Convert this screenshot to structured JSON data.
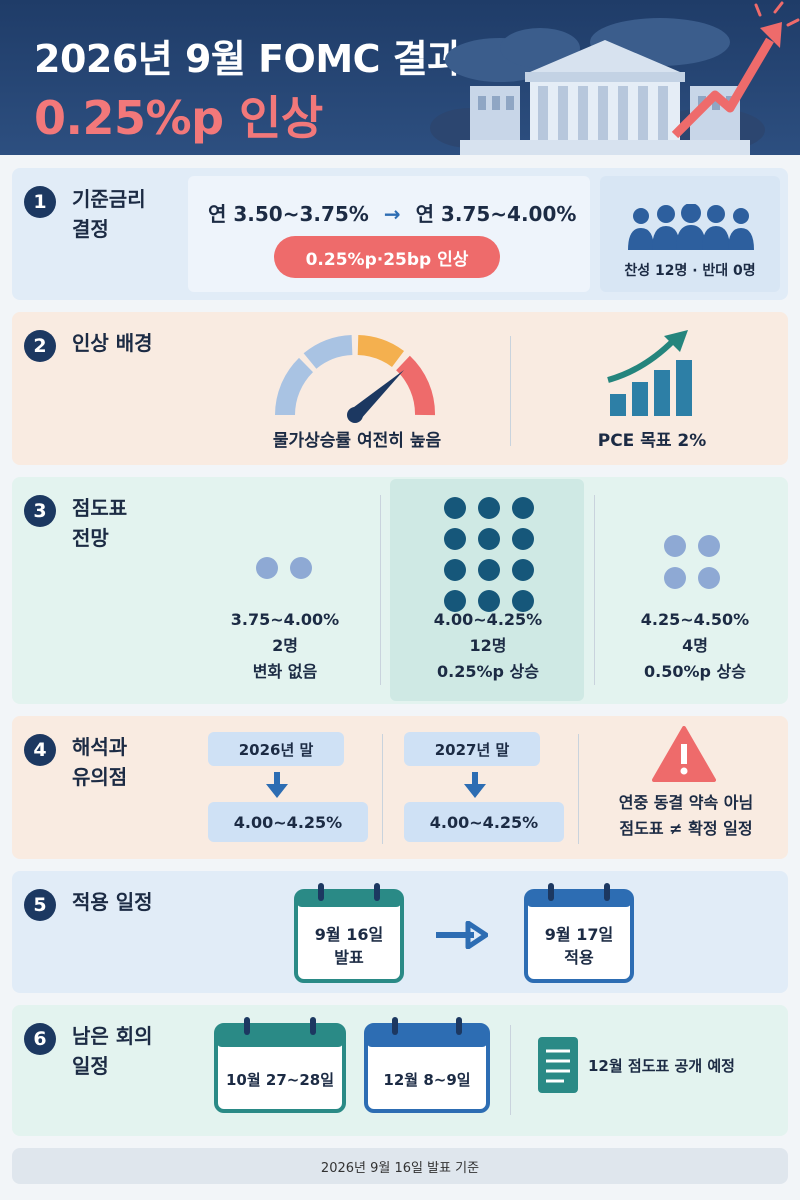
{
  "header": {
    "title": "2026년 9월 FOMC 결과",
    "subtitle": "0.25%p 인상"
  },
  "s1": {
    "num": "1",
    "title_l1": "기준금리",
    "title_l2": "결정",
    "from": "연 3.50~3.75%",
    "arrow": "→",
    "to": "연 3.75~4.00%",
    "badge": "0.25%p·25bp 인상",
    "vote": "찬성 12명 · 반대 0명"
  },
  "s2": {
    "num": "2",
    "title": "인상 배경",
    "gauge_label": "물가상승률 여전히 높음",
    "target_label": "PCE 목표 2%"
  },
  "s3": {
    "num": "3",
    "title_l1": "점도표",
    "title_l2": "전망",
    "groups": [
      {
        "range": "3.75~4.00%",
        "count": "2명",
        "note": "변화 없음"
      },
      {
        "range": "4.00~4.25%",
        "count": "12명",
        "note": "0.25%p 상승"
      },
      {
        "range": "4.25~4.50%",
        "count": "4명",
        "note": "0.50%p 상승"
      }
    ]
  },
  "s4": {
    "num": "4",
    "title_l1": "해석과",
    "title_l2": "유의점",
    "y2026_label": "2026년 말",
    "y2026_value": "4.00~4.25%",
    "y2027_label": "2027년 말",
    "y2027_value": "4.00~4.25%",
    "note_l1": "연중 동결 약속 아님",
    "note_l2": "점도표 ≠ 확정 일정"
  },
  "s5": {
    "num": "5",
    "title": "적용 일정",
    "announce_l1": "9월 16일",
    "announce_l2": "발표",
    "apply_l1": "9월 17일",
    "apply_l2": "적용"
  },
  "s6": {
    "num": "6",
    "title_l1": "남은 회의",
    "title_l2": "일정",
    "meeting1": "10월 27~28일",
    "meeting2": "12월 8~9일",
    "note": "12월 점도표 공개 예정"
  },
  "footer": "2026년 9월 16일 발표 기준",
  "colors": {
    "navy": "#1c3861",
    "red": "#ee6b6b",
    "teal": "#2a8a86",
    "blue": "#2d6db3"
  }
}
